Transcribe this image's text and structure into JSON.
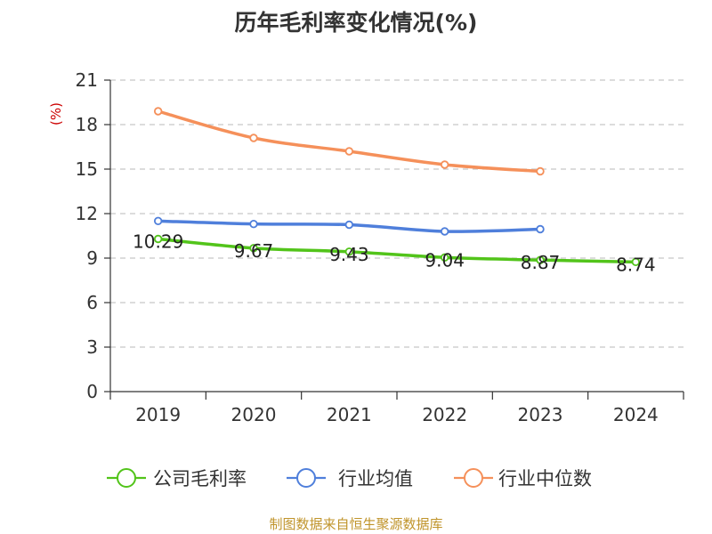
{
  "source": "制图数据来自恒生聚源数据库",
  "chart_data": {
    "type": "line",
    "title": "历年毛利率变化情况(%)",
    "ylabel": "(%)",
    "xlabel": "",
    "categories": [
      "2019",
      "2020",
      "2021",
      "2022",
      "2023",
      "2024"
    ],
    "ylim": [
      0,
      21
    ],
    "yticks": [
      0,
      3,
      6,
      9,
      12,
      15,
      18,
      21
    ],
    "grid": true,
    "legend_position": "bottom",
    "series": [
      {
        "name": "公司毛利率",
        "color": "#52c41a",
        "values": [
          10.29,
          9.67,
          9.43,
          9.04,
          8.87,
          8.74
        ],
        "labels": [
          "10.29",
          "9.67",
          "9.43",
          "9.04",
          "8.87",
          "8.74"
        ]
      },
      {
        "name": "行业均值",
        "color": "#4f7fdb",
        "values": [
          11.5,
          11.3,
          11.25,
          10.8,
          10.95,
          null
        ]
      },
      {
        "name": "行业中位数",
        "color": "#f5905a",
        "values": [
          18.9,
          17.1,
          16.2,
          15.3,
          14.85,
          null
        ]
      }
    ]
  }
}
